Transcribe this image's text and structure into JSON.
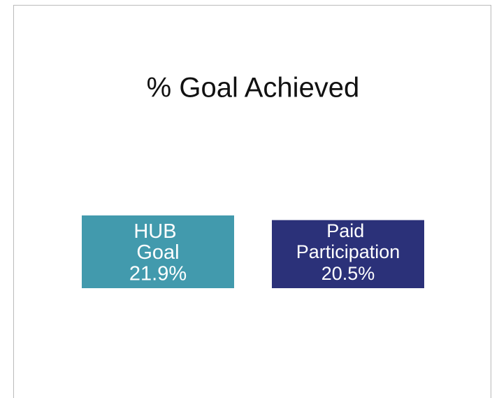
{
  "chart_data": {
    "type": "bar",
    "title": "% Goal Achieved",
    "categories": [
      "HUB Goal",
      "Paid Participation"
    ],
    "values": [
      21.9,
      20.5
    ],
    "value_labels": [
      "21.9%",
      "20.5%"
    ],
    "colors": [
      "#429aad",
      "#2b3179"
    ]
  }
}
